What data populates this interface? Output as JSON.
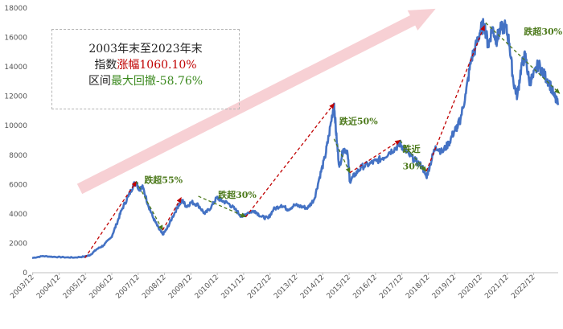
{
  "chart_data": {
    "type": "line",
    "title": "",
    "xlabel": "",
    "ylabel": "",
    "ylim": [
      0,
      18000
    ],
    "y_ticks": [
      0,
      2000,
      4000,
      6000,
      8000,
      10000,
      12000,
      14000,
      16000,
      18000
    ],
    "x_tick_labels": [
      "2003/12",
      "2004/12",
      "2005/12",
      "2006/12",
      "2007/12",
      "2008/12",
      "2009/12",
      "2010/12",
      "2011/12",
      "2012/12",
      "2013/12",
      "2014/12",
      "2015/12",
      "2016/12",
      "2017/12",
      "2018/12",
      "2019/12",
      "2020/12",
      "2021/12",
      "2022/12"
    ],
    "x_range": [
      2003.9,
      2023.85
    ],
    "series": [
      {
        "name": "指数",
        "color": "#4472c4",
        "points": [
          [
            2003.9,
            1000
          ],
          [
            2004.3,
            1130
          ],
          [
            2004.7,
            1080
          ],
          [
            2005.1,
            1050
          ],
          [
            2005.5,
            1030
          ],
          [
            2005.9,
            1100
          ],
          [
            2006.1,
            1200
          ],
          [
            2006.35,
            1600
          ],
          [
            2006.6,
            1850
          ],
          [
            2006.9,
            2400
          ],
          [
            2007.1,
            3300
          ],
          [
            2007.3,
            4300
          ],
          [
            2007.55,
            5200
          ],
          [
            2007.75,
            6000
          ],
          [
            2007.85,
            6150
          ],
          [
            2007.95,
            5700
          ],
          [
            2008.1,
            5800
          ],
          [
            2008.3,
            4600
          ],
          [
            2008.5,
            3700
          ],
          [
            2008.7,
            3000
          ],
          [
            2008.85,
            2600
          ],
          [
            2009.0,
            2950
          ],
          [
            2009.2,
            3700
          ],
          [
            2009.45,
            4600
          ],
          [
            2009.6,
            4900
          ],
          [
            2009.75,
            4500
          ],
          [
            2009.95,
            4800
          ],
          [
            2010.2,
            4600
          ],
          [
            2010.45,
            4000
          ],
          [
            2010.7,
            4500
          ],
          [
            2010.9,
            5100
          ],
          [
            2011.1,
            4900
          ],
          [
            2011.35,
            4700
          ],
          [
            2011.6,
            4300
          ],
          [
            2011.85,
            3800
          ],
          [
            2012.1,
            4100
          ],
          [
            2012.35,
            4200
          ],
          [
            2012.6,
            3800
          ],
          [
            2012.85,
            3700
          ],
          [
            2013.05,
            4300
          ],
          [
            2013.35,
            4600
          ],
          [
            2013.6,
            4300
          ],
          [
            2013.85,
            4600
          ],
          [
            2014.1,
            4500
          ],
          [
            2014.35,
            4400
          ],
          [
            2014.6,
            5000
          ],
          [
            2014.8,
            6500
          ],
          [
            2015.0,
            7800
          ],
          [
            2015.15,
            9300
          ],
          [
            2015.35,
            11500
          ],
          [
            2015.45,
            9000
          ],
          [
            2015.55,
            7200
          ],
          [
            2015.7,
            8400
          ],
          [
            2015.85,
            8300
          ],
          [
            2015.95,
            6200
          ],
          [
            2016.15,
            6700
          ],
          [
            2016.4,
            7200
          ],
          [
            2016.7,
            7400
          ],
          [
            2016.95,
            7600
          ],
          [
            2017.2,
            7800
          ],
          [
            2017.45,
            8200
          ],
          [
            2017.7,
            8500
          ],
          [
            2017.85,
            8800
          ],
          [
            2018.0,
            8400
          ],
          [
            2018.2,
            8000
          ],
          [
            2018.45,
            7600
          ],
          [
            2018.7,
            7200
          ],
          [
            2018.85,
            6500
          ],
          [
            2019.0,
            7400
          ],
          [
            2019.2,
            8600
          ],
          [
            2019.45,
            8200
          ],
          [
            2019.7,
            8800
          ],
          [
            2019.9,
            9600
          ],
          [
            2020.05,
            10000
          ],
          [
            2020.15,
            10500
          ],
          [
            2020.35,
            12200
          ],
          [
            2020.55,
            14500
          ],
          [
            2020.75,
            15500
          ],
          [
            2020.9,
            16500
          ],
          [
            2021.05,
            16900
          ],
          [
            2021.2,
            15400
          ],
          [
            2021.35,
            16700
          ],
          [
            2021.5,
            15800
          ],
          [
            2021.65,
            16500
          ],
          [
            2021.85,
            16800
          ],
          [
            2022.0,
            15600
          ],
          [
            2022.15,
            13000
          ],
          [
            2022.3,
            12000
          ],
          [
            2022.45,
            14000
          ],
          [
            2022.6,
            14800
          ],
          [
            2022.75,
            13000
          ],
          [
            2022.9,
            13300
          ],
          [
            2023.1,
            14200
          ],
          [
            2023.3,
            13500
          ],
          [
            2023.5,
            13000
          ],
          [
            2023.7,
            12000
          ],
          [
            2023.85,
            11400
          ]
        ]
      }
    ],
    "trend_arrows": [
      {
        "from": [
          2005.9,
          1000
        ],
        "to": [
          2007.85,
          6200
        ],
        "color": "#c00000"
      },
      {
        "from": [
          2007.85,
          6200
        ],
        "to": [
          2008.85,
          2900
        ],
        "color": "#4d7a1c"
      },
      {
        "from": [
          2008.85,
          2900
        ],
        "to": [
          2009.55,
          5100
        ],
        "color": "#c00000"
      },
      {
        "from": [
          2010.2,
          5200
        ],
        "to": [
          2012.0,
          3800
        ],
        "color": "#4d7a1c"
      },
      {
        "from": [
          2012.0,
          3800
        ],
        "to": [
          2015.35,
          11500
        ],
        "color": "#c00000"
      },
      {
        "from": [
          2015.35,
          9100
        ],
        "to": [
          2015.95,
          6800
        ],
        "color": "#4d7a1c"
      },
      {
        "from": [
          2015.95,
          6800
        ],
        "to": [
          2017.85,
          9000
        ],
        "color": "#c00000"
      },
      {
        "from": [
          2017.85,
          9000
        ],
        "to": [
          2018.85,
          6900
        ],
        "color": "#4d7a1c"
      },
      {
        "from": [
          2018.85,
          6900
        ],
        "to": [
          2021.05,
          16800
        ],
        "color": "#c00000"
      },
      {
        "from": [
          2021.1,
          17000
        ],
        "to": [
          2023.9,
          12200
        ],
        "color": "#4d7a1c"
      }
    ],
    "annotations": [
      {
        "text": "跌超55%",
        "x": 2008.15,
        "y": 6100
      },
      {
        "text": "跌超30%",
        "x": 2010.95,
        "y": 5100
      },
      {
        "text": "跌近50%",
        "x": 2015.55,
        "y": 10100
      },
      {
        "text": "跌近",
        "x": 2017.95,
        "y": 8220
      },
      {
        "text": "30%",
        "x": 2017.95,
        "y": 7030
      },
      {
        "text": "跌超30%",
        "x": 2022.55,
        "y": 16200
      }
    ],
    "big_arrow": {
      "from": [
        2005.7,
        5700
      ],
      "to": [
        2019.2,
        17950
      ],
      "color": "#f6c8cc"
    }
  },
  "info_box": {
    "line1": "2003年末至2023年末",
    "line2_prefix": "指数",
    "line2_highlight": "涨幅1060.10%",
    "line3_prefix": "区间",
    "line3_highlight": "最大回撤-58.76%"
  }
}
